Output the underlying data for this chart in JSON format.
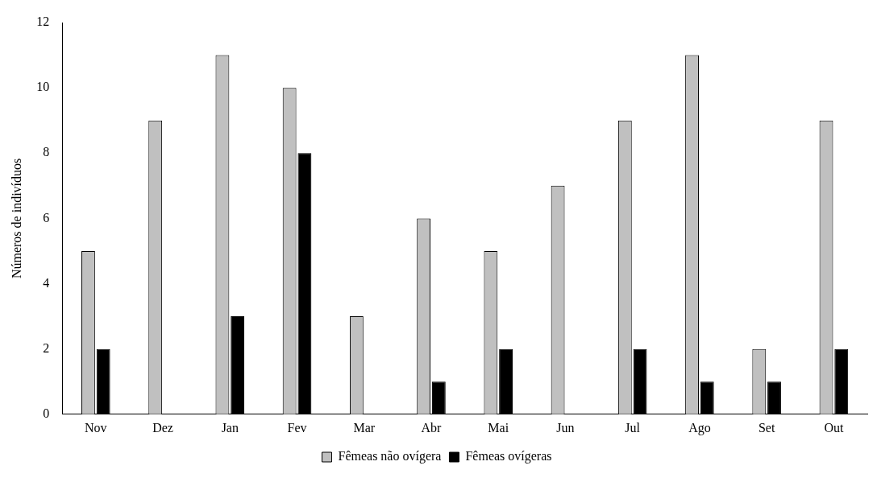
{
  "chart_data": {
    "type": "bar",
    "ylabel": "Números de indivíduos",
    "categories": [
      "Nov",
      "Dez",
      "Jan",
      "Fev",
      "Mar",
      "Abr",
      "Mai",
      "Jun",
      "Jul",
      "Ago",
      "Set",
      "Out"
    ],
    "series": [
      {
        "name": "Fêmeas não ovígera",
        "color": "#c0c0c0",
        "values": [
          5,
          9,
          11,
          10,
          3,
          6,
          5,
          7,
          9,
          11,
          2,
          9
        ]
      },
      {
        "name": "Fêmeas ovígeras",
        "color": "#000000",
        "values": [
          2,
          0,
          3,
          8,
          0,
          1,
          2,
          0,
          2,
          1,
          1,
          2
        ]
      }
    ],
    "ylim": [
      0,
      12
    ],
    "yticks": [
      0,
      2,
      4,
      6,
      8,
      10,
      12
    ],
    "grid": false,
    "legend": "bottom"
  }
}
